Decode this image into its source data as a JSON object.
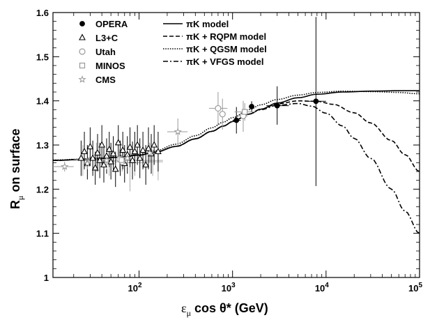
{
  "chart_data": {
    "type": "scatter",
    "xscale": "log",
    "xlim": [
      12,
      100000
    ],
    "ylim": [
      1.0,
      1.6
    ],
    "xlabel_main": "ε",
    "xlabel_sub": "μ",
    "xlabel_rest": " cos  θ* (GeV)",
    "ylabel_main": "R",
    "ylabel_sub": "μ",
    "ylabel_rest": " on surface",
    "x_ticks": [
      {
        "v": 100,
        "base": "10",
        "exp": "2"
      },
      {
        "v": 1000,
        "base": "10",
        "exp": "3"
      },
      {
        "v": 10000,
        "base": "10",
        "exp": "4"
      },
      {
        "v": 100000,
        "base": "10",
        "exp": "5"
      }
    ],
    "y_ticks": [
      {
        "v": 1.0,
        "label": "1"
      },
      {
        "v": 1.1,
        "label": "1.1"
      },
      {
        "v": 1.2,
        "label": "1.2"
      },
      {
        "v": 1.3,
        "label": "1.3"
      },
      {
        "v": 1.4,
        "label": "1.4"
      },
      {
        "v": 1.5,
        "label": "1.5"
      },
      {
        "v": 1.6,
        "label": "1.6"
      }
    ],
    "legend_placement": "top-left",
    "legend_markers": [
      {
        "name": "OPERA",
        "marker": "filled-circle",
        "color": "#000000"
      },
      {
        "name": "L3+C",
        "marker": "open-triangle",
        "color": "#000000"
      },
      {
        "name": "Utah",
        "marker": "open-circle",
        "color": "#999999"
      },
      {
        "name": "MINOS",
        "marker": "open-square",
        "color": "#999999"
      },
      {
        "name": "CMS",
        "marker": "open-star",
        "color": "#999999"
      }
    ],
    "legend_models": [
      {
        "name": "πK model",
        "dash": "solid"
      },
      {
        "name": "πK + RQPM model",
        "dash": "dashed"
      },
      {
        "name": "πK + QGSM model",
        "dash": "dotted"
      },
      {
        "name": "πK + VFGS model",
        "dash": "dashdot"
      }
    ],
    "models": [
      {
        "name": "πK model",
        "dash": "solid",
        "x": [
          12,
          30,
          60,
          100,
          150,
          250,
          400,
          600,
          800,
          1000,
          1500,
          2000,
          3000,
          5000,
          8000,
          15000,
          30000,
          60000,
          100000
        ],
        "y": [
          1.265,
          1.268,
          1.272,
          1.277,
          1.284,
          1.297,
          1.314,
          1.331,
          1.343,
          1.353,
          1.37,
          1.381,
          1.395,
          1.407,
          1.415,
          1.42,
          1.422,
          1.423,
          1.423
        ]
      },
      {
        "name": "πK + RQPM model",
        "dash": "dashed",
        "x": [
          12,
          30,
          60,
          100,
          150,
          250,
          400,
          600,
          800,
          1000,
          1500,
          2000,
          3000,
          5000,
          8000,
          12000,
          20000,
          30000,
          50000,
          70000,
          100000
        ],
        "y": [
          1.265,
          1.268,
          1.272,
          1.277,
          1.284,
          1.297,
          1.314,
          1.331,
          1.343,
          1.353,
          1.37,
          1.381,
          1.393,
          1.4,
          1.399,
          1.392,
          1.373,
          1.35,
          1.31,
          1.278,
          1.24
        ]
      },
      {
        "name": "πK + QGSM model",
        "dash": "dotted",
        "x": [
          12,
          30,
          60,
          100,
          150,
          250,
          400,
          600,
          800,
          1000,
          1500,
          2000,
          3000,
          5000,
          8000,
          15000,
          30000,
          60000,
          100000
        ],
        "y": [
          1.266,
          1.269,
          1.273,
          1.279,
          1.287,
          1.302,
          1.321,
          1.339,
          1.352,
          1.362,
          1.38,
          1.391,
          1.403,
          1.413,
          1.419,
          1.422,
          1.421,
          1.419,
          1.416
        ]
      },
      {
        "name": "πK + VFGS model",
        "dash": "dashdot",
        "x": [
          12,
          30,
          60,
          100,
          150,
          250,
          400,
          600,
          800,
          1000,
          1500,
          2000,
          3000,
          5000,
          7000,
          10000,
          15000,
          20000,
          30000,
          50000,
          70000,
          100000
        ],
        "y": [
          1.265,
          1.268,
          1.272,
          1.277,
          1.284,
          1.297,
          1.314,
          1.331,
          1.343,
          1.353,
          1.37,
          1.38,
          1.39,
          1.394,
          1.388,
          1.372,
          1.343,
          1.315,
          1.27,
          1.2,
          1.15,
          1.1
        ]
      }
    ],
    "series": [
      {
        "name": "OPERA",
        "marker": "filled-circle",
        "color": "#000000",
        "points": [
          {
            "x": 1100,
            "y": 1.356,
            "ylo": 1.326,
            "yhi": 1.386,
            "xlo": 1000,
            "xhi": 1220
          },
          {
            "x": 1600,
            "y": 1.387,
            "ylo": 1.375,
            "yhi": 1.399,
            "xlo": 1500,
            "xhi": 1700
          },
          {
            "x": 3000,
            "y": 1.389,
            "ylo": 1.346,
            "yhi": 1.433,
            "xlo": 2300,
            "xhi": 4000
          },
          {
            "x": 7800,
            "y": 1.399,
            "ylo": 1.207,
            "yhi": 1.59,
            "xlo": 6000,
            "xhi": 10000
          }
        ]
      },
      {
        "name": "L3+C",
        "marker": "open-triangle",
        "color": "#000000",
        "points": [
          {
            "x": 24,
            "y": 1.27,
            "ylo": 1.23,
            "yhi": 1.31
          },
          {
            "x": 26,
            "y": 1.285,
            "ylo": 1.245,
            "yhi": 1.33
          },
          {
            "x": 28,
            "y": 1.258,
            "ylo": 1.222,
            "yhi": 1.3
          },
          {
            "x": 30,
            "y": 1.296,
            "ylo": 1.255,
            "yhi": 1.34
          },
          {
            "x": 32,
            "y": 1.27,
            "ylo": 1.23,
            "yhi": 1.31
          },
          {
            "x": 34,
            "y": 1.248,
            "ylo": 1.21,
            "yhi": 1.285
          },
          {
            "x": 36,
            "y": 1.282,
            "ylo": 1.24,
            "yhi": 1.325
          },
          {
            "x": 38,
            "y": 1.265,
            "ylo": 1.225,
            "yhi": 1.305
          },
          {
            "x": 40,
            "y": 1.3,
            "ylo": 1.255,
            "yhi": 1.345
          },
          {
            "x": 42,
            "y": 1.255,
            "ylo": 1.215,
            "yhi": 1.295
          },
          {
            "x": 45,
            "y": 1.275,
            "ylo": 1.235,
            "yhi": 1.315
          },
          {
            "x": 48,
            "y": 1.29,
            "ylo": 1.25,
            "yhi": 1.33
          },
          {
            "x": 50,
            "y": 1.262,
            "ylo": 1.222,
            "yhi": 1.305
          },
          {
            "x": 53,
            "y": 1.28,
            "ylo": 1.24,
            "yhi": 1.32
          },
          {
            "x": 56,
            "y": 1.245,
            "ylo": 1.205,
            "yhi": 1.285
          },
          {
            "x": 60,
            "y": 1.305,
            "ylo": 1.265,
            "yhi": 1.345
          },
          {
            "x": 63,
            "y": 1.27,
            "ylo": 1.23,
            "yhi": 1.31
          },
          {
            "x": 67,
            "y": 1.288,
            "ylo": 1.245,
            "yhi": 1.33
          },
          {
            "x": 70,
            "y": 1.258,
            "ylo": 1.215,
            "yhi": 1.3
          },
          {
            "x": 75,
            "y": 1.278,
            "ylo": 1.235,
            "yhi": 1.32
          },
          {
            "x": 80,
            "y": 1.295,
            "ylo": 1.25,
            "yhi": 1.34
          },
          {
            "x": 85,
            "y": 1.265,
            "ylo": 1.222,
            "yhi": 1.308
          },
          {
            "x": 90,
            "y": 1.285,
            "ylo": 1.24,
            "yhi": 1.33
          },
          {
            "x": 96,
            "y": 1.3,
            "ylo": 1.255,
            "yhi": 1.345
          },
          {
            "x": 102,
            "y": 1.27,
            "ylo": 1.225,
            "yhi": 1.315
          },
          {
            "x": 110,
            "y": 1.288,
            "ylo": 1.245,
            "yhi": 1.33
          },
          {
            "x": 118,
            "y": 1.255,
            "ylo": 1.21,
            "yhi": 1.3
          },
          {
            "x": 126,
            "y": 1.292,
            "ylo": 1.245,
            "yhi": 1.34
          },
          {
            "x": 135,
            "y": 1.28,
            "ylo": 1.235,
            "yhi": 1.325
          },
          {
            "x": 145,
            "y": 1.3,
            "ylo": 1.255,
            "yhi": 1.345
          },
          {
            "x": 160,
            "y": 1.285,
            "ylo": 1.24,
            "yhi": 1.33
          }
        ]
      },
      {
        "name": "Utah",
        "marker": "open-circle",
        "color": "#999999",
        "points": [
          {
            "x": 62,
            "y": 1.268,
            "ylo": 1.245,
            "yhi": 1.29
          },
          {
            "x": 66,
            "y": 1.262,
            "ylo": 1.24,
            "yhi": 1.285
          },
          {
            "x": 700,
            "y": 1.383,
            "ylo": 1.345,
            "yhi": 1.42,
            "xlo": 560,
            "xhi": 880
          },
          {
            "x": 780,
            "y": 1.37,
            "ylo": 1.335,
            "yhi": 1.405
          },
          {
            "x": 1300,
            "y": 1.366,
            "ylo": 1.33,
            "yhi": 1.4,
            "xlo": 1150,
            "xhi": 1450
          }
        ]
      },
      {
        "name": "MINOS",
        "marker": "open-square",
        "color": "#999999",
        "points": [
          {
            "x": 65,
            "y": 1.266,
            "ylo": 1.255,
            "yhi": 1.277
          },
          {
            "x": 1350,
            "y": 1.375,
            "ylo": 1.355,
            "yhi": 1.395,
            "xlo": 1050,
            "xhi": 1750
          }
        ]
      },
      {
        "name": "CMS",
        "marker": "open-star",
        "color": "#999999",
        "points": [
          {
            "x": 16,
            "y": 1.251,
            "ylo": 1.24,
            "yhi": 1.262,
            "xlo": 12,
            "xhi": 20
          },
          {
            "x": 28,
            "y": 1.258,
            "ylo": 1.245,
            "yhi": 1.27
          },
          {
            "x": 45,
            "y": 1.265,
            "ylo": 1.245,
            "yhi": 1.285
          },
          {
            "x": 75,
            "y": 1.27,
            "ylo": 1.25,
            "yhi": 1.29
          },
          {
            "x": 130,
            "y": 1.282,
            "ylo": 1.26,
            "yhi": 1.305
          },
          {
            "x": 260,
            "y": 1.33,
            "ylo": 1.3,
            "yhi": 1.36,
            "xlo": 200,
            "xhi": 330
          }
        ]
      }
    ],
    "grey_crosses": [
      {
        "x": 25,
        "y": 1.268,
        "ylo": 1.23,
        "yhi": 1.3,
        "xlo": 20,
        "xhi": 32
      },
      {
        "x": 35,
        "y": 1.272,
        "ylo": 1.24,
        "yhi": 1.305,
        "xlo": 28,
        "xhi": 44
      },
      {
        "x": 48,
        "y": 1.262,
        "ylo": 1.23,
        "yhi": 1.295,
        "xlo": 38,
        "xhi": 60
      },
      {
        "x": 90,
        "y": 1.26,
        "ylo": 1.23,
        "yhi": 1.29,
        "xlo": 70,
        "xhi": 115
      },
      {
        "x": 140,
        "y": 1.262,
        "ylo": 1.23,
        "yhi": 1.29,
        "xlo": 110,
        "xhi": 180
      },
      {
        "x": 80,
        "y": 1.255,
        "ylo": 1.195,
        "yhi": 1.315
      },
      {
        "x": 160,
        "y": 1.252,
        "ylo": 1.22,
        "yhi": 1.285
      },
      {
        "x": 62,
        "y": 1.265,
        "ylo": 1.24,
        "yhi": 1.285,
        "xlo": 22,
        "xhi": 180
      }
    ]
  }
}
